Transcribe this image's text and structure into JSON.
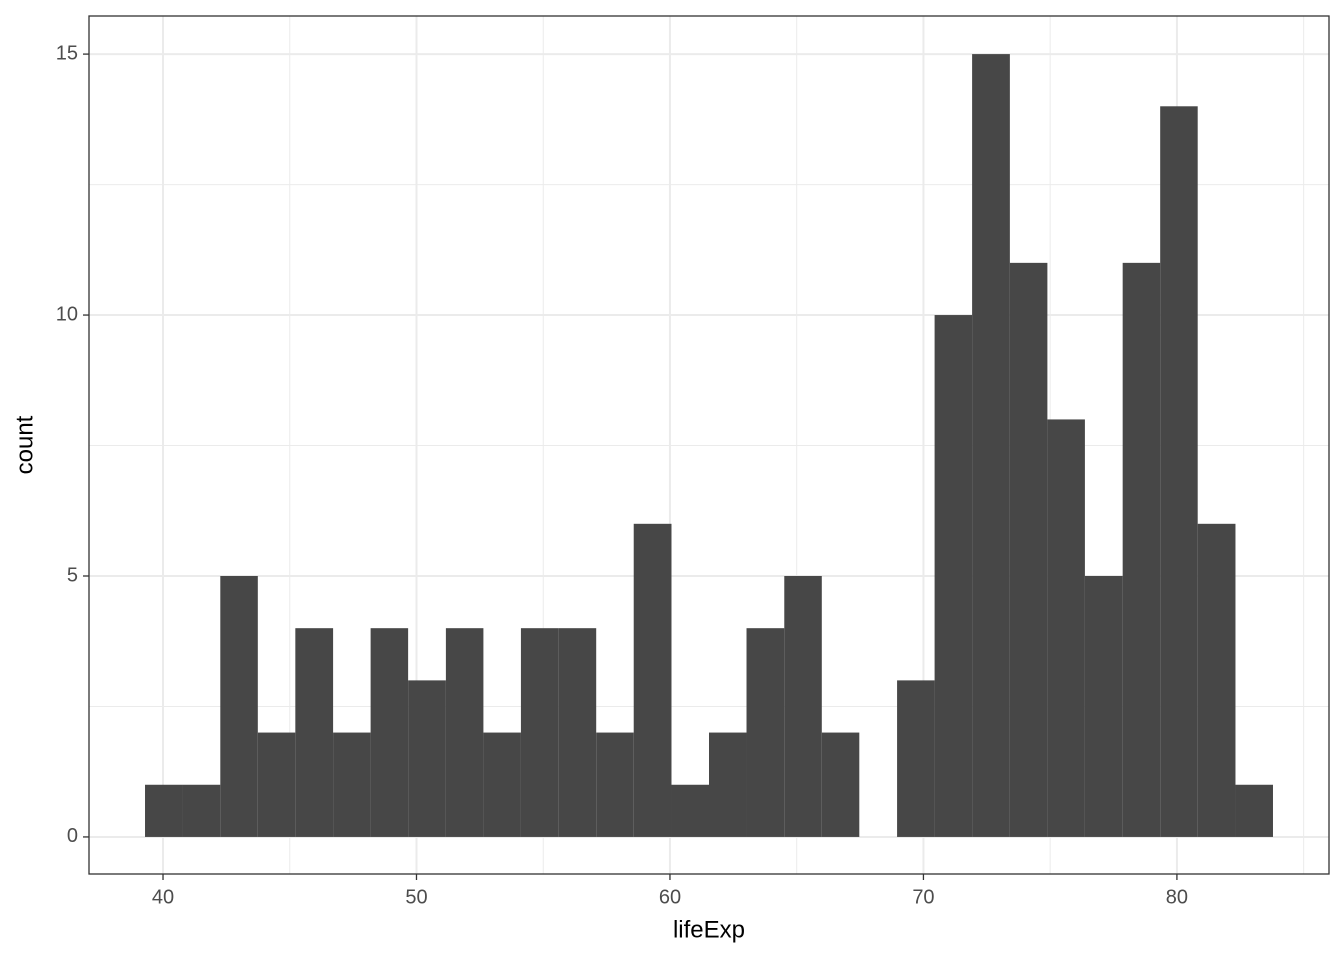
{
  "chart_data": {
    "type": "histogram",
    "x_label": "lifeExp",
    "y_label": "count",
    "bins": [
      39.29,
      40.77,
      42.26,
      43.74,
      45.22,
      46.71,
      48.19,
      49.67,
      51.16,
      52.64,
      54.12,
      55.61,
      57.09,
      58.57,
      60.06,
      61.54,
      63.02,
      64.51,
      65.99,
      67.47,
      68.96,
      70.44,
      71.92,
      73.41,
      74.89,
      76.37,
      77.86,
      79.34,
      80.82,
      82.31,
      83.79
    ],
    "values": [
      1,
      1,
      5,
      2,
      4,
      2,
      4,
      3,
      4,
      2,
      4,
      4,
      2,
      6,
      1,
      2,
      4,
      5,
      2,
      0,
      3,
      10,
      15,
      11,
      8,
      5,
      11,
      14,
      6,
      1
    ],
    "color": "#474747",
    "xlim": [
      37.08,
      86.0
    ],
    "xticks": [
      40,
      50,
      60,
      70,
      80
    ],
    "ylim": [
      -0.71,
      15.73
    ],
    "yticks": [
      0,
      5,
      10,
      15
    ],
    "grid": true
  }
}
